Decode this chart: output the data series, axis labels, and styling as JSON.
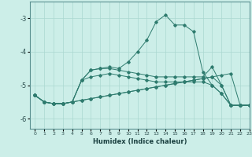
{
  "xlabel": "Humidex (Indice chaleur)",
  "bg_color": "#cceee8",
  "line_color": "#2e7b6e",
  "grid_color": "#aad8d0",
  "xlim": [
    -0.5,
    23
  ],
  "ylim": [
    -6.3,
    -2.5
  ],
  "yticks": [
    -6,
    -5,
    -4,
    -3
  ],
  "xticks": [
    0,
    1,
    2,
    3,
    4,
    5,
    6,
    7,
    8,
    9,
    10,
    11,
    12,
    13,
    14,
    15,
    16,
    17,
    18,
    19,
    20,
    21,
    22,
    23
  ],
  "series": [
    {
      "x": [
        0,
        1,
        2,
        3,
        4,
        5,
        6,
        7,
        8,
        9,
        10,
        11,
        12,
        13,
        14,
        15,
        16,
        17,
        18,
        19,
        20,
        21,
        22,
        23
      ],
      "y": [
        -5.3,
        -5.5,
        -5.55,
        -5.55,
        -5.5,
        -5.45,
        -5.4,
        -5.35,
        -5.3,
        -5.25,
        -5.2,
        -5.15,
        -5.1,
        -5.05,
        -5.0,
        -4.95,
        -4.9,
        -4.85,
        -4.8,
        -4.75,
        -4.7,
        -4.65,
        -5.6,
        -5.6
      ]
    },
    {
      "x": [
        0,
        1,
        2,
        3,
        4,
        5,
        6,
        7,
        8,
        9,
        10,
        11,
        12,
        13,
        14,
        15,
        16,
        17,
        18,
        19,
        20,
        21,
        22,
        23
      ],
      "y": [
        -5.3,
        -5.5,
        -5.55,
        -5.55,
        -5.5,
        -5.45,
        -5.4,
        -5.35,
        -5.3,
        -5.25,
        -5.2,
        -5.15,
        -5.1,
        -5.05,
        -5.0,
        -4.95,
        -4.9,
        -4.85,
        -4.8,
        -4.75,
        -5.0,
        -5.6,
        -5.6,
        -5.6
      ]
    },
    {
      "x": [
        0,
        1,
        2,
        3,
        4,
        5,
        6,
        7,
        8,
        9,
        10,
        11,
        12,
        13,
        14,
        15,
        16,
        17,
        18,
        19,
        20,
        21,
        22,
        23
      ],
      "y": [
        -5.3,
        -5.5,
        -5.55,
        -5.55,
        -5.5,
        -4.85,
        -4.75,
        -4.7,
        -4.65,
        -4.7,
        -4.75,
        -4.8,
        -4.85,
        -4.9,
        -4.9,
        -4.9,
        -4.9,
        -4.9,
        -4.9,
        -5.0,
        -5.25,
        -5.6,
        -5.6,
        -5.6
      ]
    },
    {
      "x": [
        0,
        1,
        2,
        3,
        4,
        5,
        6,
        7,
        8,
        9,
        10,
        11,
        12,
        13,
        14,
        15,
        16,
        17,
        18,
        19,
        20,
        21,
        22,
        23
      ],
      "y": [
        -5.3,
        -5.5,
        -5.55,
        -5.55,
        -5.5,
        -4.85,
        -4.55,
        -4.5,
        -4.5,
        -4.55,
        -4.6,
        -4.65,
        -4.7,
        -4.75,
        -4.75,
        -4.75,
        -4.75,
        -4.75,
        -4.75,
        -4.45,
        -5.0,
        -5.6,
        -5.6,
        -5.6
      ]
    },
    {
      "x": [
        0,
        1,
        2,
        3,
        4,
        5,
        6,
        7,
        8,
        9,
        10,
        11,
        12,
        13,
        14,
        15,
        16,
        17,
        18,
        19,
        20,
        21,
        22,
        23
      ],
      "y": [
        -5.3,
        -5.5,
        -5.55,
        -5.55,
        -5.5,
        -4.85,
        -4.55,
        -4.5,
        -4.45,
        -4.5,
        -4.3,
        -4.0,
        -3.65,
        -3.1,
        -2.9,
        -3.2,
        -3.2,
        -3.4,
        -4.6,
        -5.0,
        -5.25,
        -5.6,
        -5.6,
        -5.6
      ]
    }
  ]
}
